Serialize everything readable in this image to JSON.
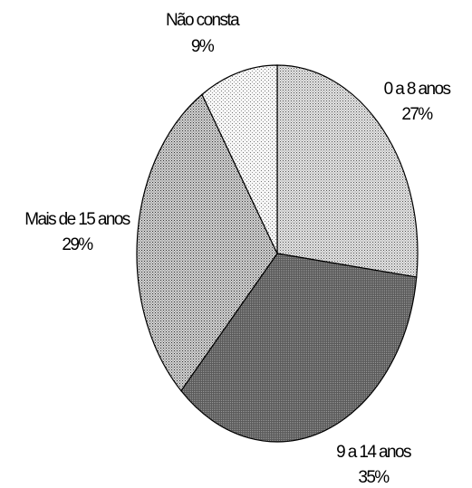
{
  "chart_data": {
    "type": "pie",
    "start_angle_deg": 0,
    "direction": "clockwise",
    "slices": [
      {
        "label": "0 a 8 anos",
        "value": 27,
        "percent_label": "27%",
        "color": "#c8c8c8",
        "pattern": "fine-dots"
      },
      {
        "label": "9 a 14 anos",
        "value": 35,
        "percent_label": "35%",
        "color": "#6e6e6e",
        "pattern": "dark-dots"
      },
      {
        "label": "Mais de 15 anos",
        "value": 29,
        "percent_label": "29%",
        "color": "#b4b4b4",
        "pattern": "medium-dots"
      },
      {
        "label": "Não consta",
        "value": 9,
        "percent_label": "9%",
        "color": "#ececec",
        "pattern": "sparse-dots"
      }
    ]
  }
}
